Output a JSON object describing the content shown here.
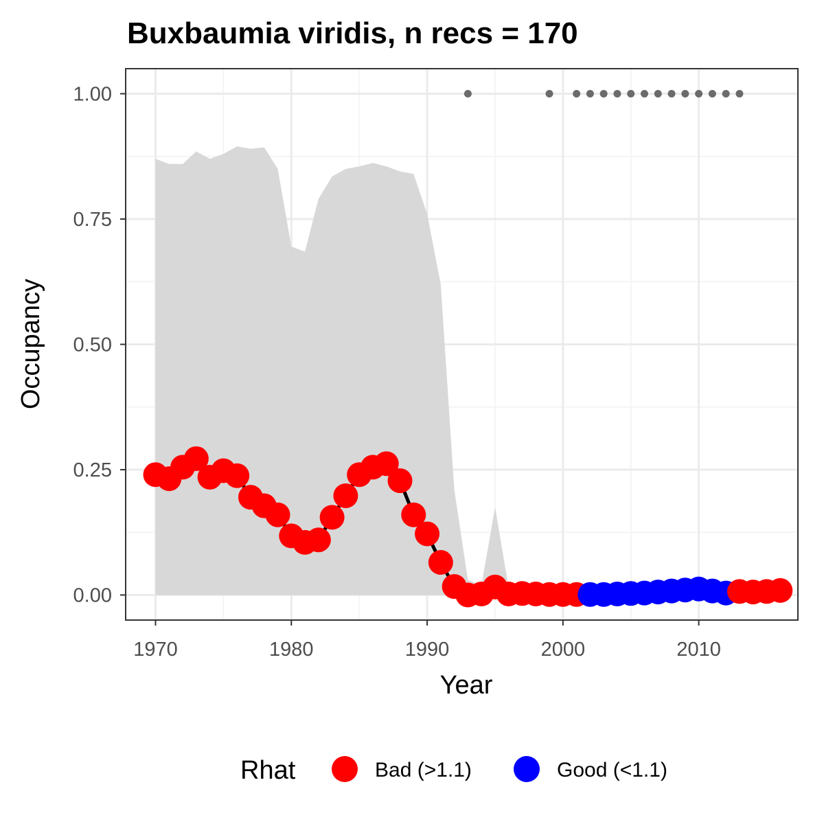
{
  "chart_data": {
    "type": "line",
    "title": "Buxbaumia viridis, n recs = 170",
    "xlabel": "Year",
    "ylabel": "Occupancy",
    "xlim": [
      1967.8,
      2017.3
    ],
    "ylim": [
      -0.05,
      1.05
    ],
    "x_ticks": [
      1970,
      1980,
      1990,
      2000,
      2010
    ],
    "x_tick_labels": [
      "1970",
      "1980",
      "1990",
      "2000",
      "2010"
    ],
    "y_ticks": [
      0,
      0.25,
      0.5,
      0.75,
      1
    ],
    "y_tick_labels": [
      "0.00",
      "0.25",
      "0.50",
      "0.75",
      "1.00"
    ],
    "grid": true,
    "legend": {
      "title": "Rhat",
      "position": "bottom",
      "entries": [
        {
          "label": "Bad (>1.1)",
          "color": "#ff0000"
        },
        {
          "label": "Good (<1.1)",
          "color": "#0000ff"
        }
      ]
    },
    "colors": {
      "bad": "#ff0000",
      "good": "#0000ff",
      "ribbon": "#d6d6d6",
      "line": "#000000",
      "record_points": "#6b6b6b"
    },
    "series": [
      {
        "type": "ribbon",
        "x": [
          1970,
          1971,
          1972,
          1973,
          1974,
          1975,
          1976,
          1977,
          1978,
          1979,
          1980,
          1981,
          1982,
          1983,
          1984,
          1985,
          1986,
          1987,
          1988,
          1989,
          1990,
          1991,
          1992,
          1993,
          1994,
          1995,
          1996,
          1997,
          1998,
          1999,
          2000,
          2001,
          2002,
          2003,
          2004,
          2005,
          2006,
          2007,
          2008,
          2009,
          2010,
          2011,
          2012,
          2013,
          2014,
          2015,
          2016
        ],
        "lower": [
          0,
          0,
          0,
          0,
          0,
          0,
          0,
          0,
          0,
          0,
          0,
          0,
          0,
          0,
          0,
          0,
          0,
          0,
          0,
          0,
          0,
          0,
          0,
          0,
          0,
          0,
          0,
          0,
          0,
          0,
          0,
          0,
          0,
          0,
          0,
          0,
          0,
          0,
          0,
          0,
          0,
          0,
          0,
          0,
          0,
          0,
          0
        ],
        "upper": [
          0.87,
          0.86,
          0.86,
          0.885,
          0.87,
          0.88,
          0.895,
          0.89,
          0.893,
          0.85,
          0.695,
          0.685,
          0.79,
          0.835,
          0.85,
          0.855,
          0.862,
          0.855,
          0.845,
          0.84,
          0.76,
          0.62,
          0.21,
          0.03,
          0.02,
          0.175,
          0.015,
          0.01,
          0.008,
          0.006,
          0.005,
          0.005,
          0.005,
          0.005,
          0.005,
          0.005,
          0.005,
          0.005,
          0.005,
          0.005,
          0.005,
          0.005,
          0.005,
          0.005,
          0.005,
          0.005,
          0.005
        ]
      },
      {
        "type": "line_points",
        "x": [
          1970,
          1971,
          1972,
          1973,
          1974,
          1975,
          1976,
          1977,
          1978,
          1979,
          1980,
          1981,
          1982,
          1983,
          1984,
          1985,
          1986,
          1987,
          1988,
          1989,
          1990,
          1991,
          1992,
          1993,
          1994,
          1995,
          1996,
          1997,
          1998,
          1999,
          2000,
          2001,
          2002,
          2003,
          2004,
          2005,
          2006,
          2007,
          2008,
          2009,
          2010,
          2011,
          2012,
          2013,
          2014,
          2015,
          2016
        ],
        "y": [
          0.24,
          0.232,
          0.255,
          0.272,
          0.235,
          0.248,
          0.238,
          0.195,
          0.178,
          0.16,
          0.118,
          0.105,
          0.11,
          0.155,
          0.198,
          0.24,
          0.255,
          0.262,
          0.228,
          0.16,
          0.122,
          0.065,
          0.017,
          0.0,
          0.002,
          0.016,
          0.002,
          0.003,
          0.002,
          0.001,
          0.001,
          0.001,
          0.001,
          0.001,
          0.002,
          0.003,
          0.004,
          0.006,
          0.008,
          0.01,
          0.012,
          0.008,
          0.004,
          0.007,
          0.006,
          0.007,
          0.009
        ],
        "rhat": [
          "bad",
          "bad",
          "bad",
          "bad",
          "bad",
          "bad",
          "bad",
          "bad",
          "bad",
          "bad",
          "bad",
          "bad",
          "bad",
          "bad",
          "bad",
          "bad",
          "bad",
          "bad",
          "bad",
          "bad",
          "bad",
          "bad",
          "bad",
          "bad",
          "bad",
          "bad",
          "bad",
          "bad",
          "bad",
          "bad",
          "bad",
          "bad",
          "good",
          "good",
          "good",
          "good",
          "good",
          "good",
          "good",
          "good",
          "good",
          "good",
          "good",
          "bad",
          "bad",
          "bad",
          "bad"
        ]
      },
      {
        "type": "record_points",
        "x": [
          1993,
          1999,
          2001,
          2002,
          2003,
          2004,
          2005,
          2006,
          2007,
          2008,
          2009,
          2010,
          2011,
          2012,
          2013
        ],
        "y": [
          1,
          1,
          1,
          1,
          1,
          1,
          1,
          1,
          1,
          1,
          1,
          1,
          1,
          1,
          1
        ]
      }
    ]
  }
}
